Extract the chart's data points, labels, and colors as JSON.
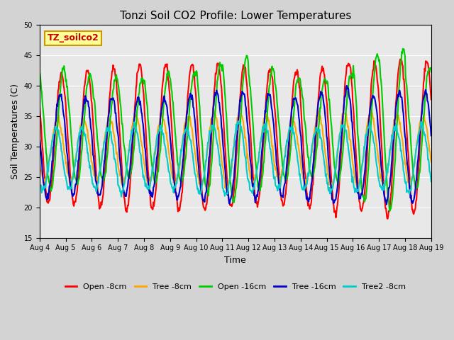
{
  "title": "Tonzi Soil CO2 Profile: Lower Temperatures",
  "xlabel": "Time",
  "ylabel": "Soil Temperatures (C)",
  "ylim": [
    15,
    50
  ],
  "yticks": [
    15,
    20,
    25,
    30,
    35,
    40,
    45,
    50
  ],
  "date_labels": [
    "Aug 4",
    "Aug 5",
    "Aug 6",
    "Aug 7",
    "Aug 8",
    "Aug 9",
    "Aug 10",
    "Aug 11",
    "Aug 12",
    "Aug 13",
    "Aug 14",
    "Aug 15",
    "Aug 16",
    "Aug 17",
    "Aug 18",
    "Aug 19"
  ],
  "watermark_text": "TZ_soilco2",
  "watermark_color": "#cc0000",
  "watermark_bg": "#ffff99",
  "watermark_border": "#cc9900",
  "bg_color": "#d3d3d3",
  "plot_bg": "#e8e8e8",
  "series_keys": [
    "Open -8cm",
    "Tree -8cm",
    "Open -16cm",
    "Tree -16cm",
    "Tree2 -8cm"
  ],
  "series_colors": [
    "#ff0000",
    "#ffa500",
    "#00cc00",
    "#0000cc",
    "#00cccc"
  ],
  "series_lw": [
    1.5,
    1.5,
    1.5,
    1.5,
    1.5
  ],
  "points_per_day": 48,
  "num_days": 15,
  "open8_params": {
    "base": 31.5,
    "amp_trend": [
      10.5,
      11,
      11.5,
      12,
      12,
      12,
      12,
      11.5,
      11,
      11,
      11.5,
      12.5,
      12,
      13,
      12.5
    ],
    "phase": 0.0
  },
  "tree8_params": {
    "base": 29.5,
    "amp_trend": [
      5,
      5,
      5,
      5.5,
      5.5,
      5.5,
      6,
      6,
      5.5,
      5,
      5.5,
      6,
      6,
      5.5,
      5.5
    ],
    "phase": 0.15
  },
  "open16_params": {
    "base": 33.0,
    "amp_trend": [
      10,
      9,
      8.5,
      8,
      9,
      9,
      10.5,
      12,
      10,
      8.5,
      8,
      9,
      12,
      13,
      10
    ],
    "phase": -0.1
  },
  "tree16_params": {
    "base": 30.0,
    "amp_trend": [
      8.5,
      8,
      8,
      8,
      8,
      8.5,
      9,
      9,
      8.5,
      8,
      9,
      9.5,
      8.5,
      9,
      9
    ],
    "phase": 0.05
  },
  "tree2_8_params": {
    "base": 28.0,
    "amp_trend": [
      5,
      5,
      5,
      5.5,
      5,
      5,
      5.5,
      6,
      5.5,
      5,
      5,
      5.5,
      5.5,
      5,
      5.5
    ],
    "phase": 0.2
  }
}
